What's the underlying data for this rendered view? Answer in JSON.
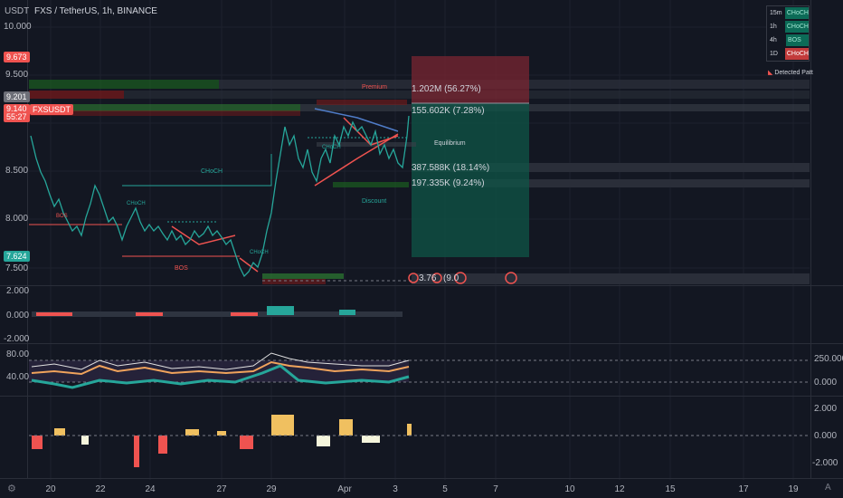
{
  "header": {
    "symbol_line": "FXS / TetherUS, 1h, BINANCE",
    "currency": "USDT"
  },
  "price_axis": {
    "ticks": [
      "10.000",
      "9.500",
      "9.000",
      "8.500",
      "8.000",
      "7.500"
    ]
  },
  "price_tags": {
    "high": "9.673",
    "last_a": "9.201",
    "symbol": "FXSUSDT",
    "price": "9.140",
    "countdown": "55:27",
    "low": "7.624"
  },
  "zones": {
    "premium": "Premium",
    "equilibrium": "Equilibrium",
    "discount": "Discount"
  },
  "smc_labels": {
    "choch": "CHoCH",
    "bos": "BOS"
  },
  "volume_labels": {
    "v1": "1.202M (56.27%)",
    "v2": "155.602K (7.28%)",
    "v3": "387.588K (18.14%)",
    "v4": "197.335K (9.24%)",
    "v5": "3.76",
    "v6": "(9.0"
  },
  "mtf_table": {
    "rows": [
      {
        "tf": "15m",
        "state": "CHoCH",
        "color": "#0c6b57"
      },
      {
        "tf": "1h",
        "state": "CHoCH",
        "color": "#0c6b57"
      },
      {
        "tf": "4h",
        "state": "BOS",
        "color": "#0c6b57"
      },
      {
        "tf": "1D",
        "state": "CHoCH",
        "color": "#c23b3b"
      }
    ],
    "detected": "Detected Patt"
  },
  "pane2": {
    "ticks": [
      "2.000",
      "0.000",
      "-2.000"
    ]
  },
  "pane3": {
    "left_ticks": [
      "80.00",
      "40.00"
    ],
    "right_ticks": [
      "250.000",
      "0.000"
    ]
  },
  "pane4": {
    "ticks": [
      "2.000",
      "0.000",
      "-2.000"
    ]
  },
  "time_axis": {
    "ticks": [
      "20",
      "22",
      "24",
      "27",
      "29",
      "Apr",
      "3",
      "5",
      "7",
      "10",
      "12",
      "15",
      "17",
      "19"
    ]
  },
  "colors": {
    "bg": "#131722",
    "up": "#26a69a",
    "down": "#ef5350",
    "accent": "#2962ff"
  }
}
